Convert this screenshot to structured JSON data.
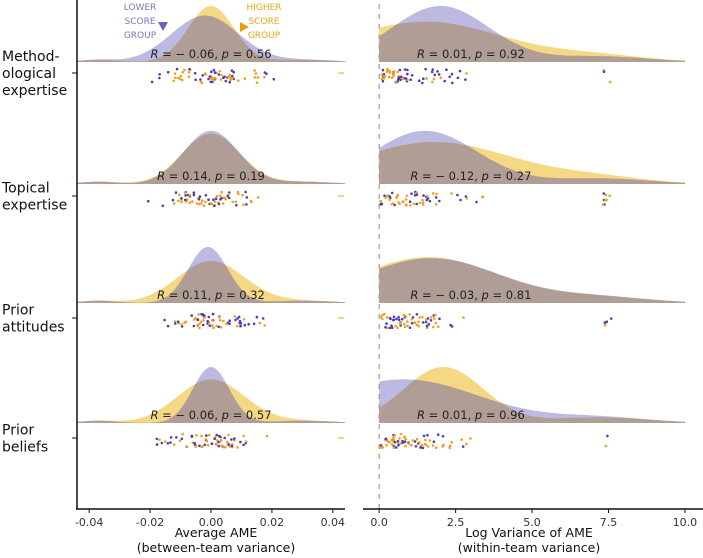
{
  "colors": {
    "lower": "#8f8ccf",
    "higher": "#f0c850",
    "overlap": "#b09d95",
    "lower_point": "#4a3fb0",
    "higher_point": "#f0a020",
    "legend_lower_text": "#7b78c4",
    "legend_higher_text": "#e6a817"
  },
  "legend": {
    "lower": [
      "LOWER",
      "SCORE",
      "GROUP"
    ],
    "higher": [
      "HIGHER",
      "SCORE",
      "GROUP"
    ]
  },
  "chart_data": [
    {
      "type": "area",
      "panel": "left",
      "title": "",
      "xlabel": "Average AME",
      "xlabel2": "(between-team variance)",
      "xlim": [
        -0.044,
        0.044
      ],
      "xticks": [
        -0.04,
        -0.02,
        0.0,
        0.02,
        0.04
      ],
      "xtick_labels": [
        "-0.04",
        "-0.02",
        "0.00",
        "0.02",
        "0.04"
      ],
      "rows": [
        {
          "label": [
            "Method-",
            "ological",
            "expertise"
          ],
          "annotation": {
            "R": "− 0.06",
            "p": "0.56"
          },
          "lower": {
            "peak_x": -0.002,
            "sd": 0.011,
            "height": 0.83
          },
          "higher": {
            "peak_x": 0.0,
            "sd": 0.0075,
            "height": 1.0
          }
        },
        {
          "label": [
            "Topical",
            "expertise"
          ],
          "annotation": {
            "R": "0.14",
            "p": "0.19"
          },
          "lower": {
            "peak_x": 0.0,
            "sd": 0.009,
            "height": 0.95
          },
          "higher": {
            "peak_x": 0.0,
            "sd": 0.0095,
            "height": 0.9
          }
        },
        {
          "label": [
            "Prior",
            "attitudes"
          ],
          "annotation": {
            "R": "0.11",
            "p": "0.32"
          },
          "lower": {
            "peak_x": -0.001,
            "sd": 0.0065,
            "height": 1.0
          },
          "higher": {
            "peak_x": 0.0,
            "sd": 0.011,
            "height": 0.75
          }
        },
        {
          "label": [
            "Prior",
            "beliefs"
          ],
          "annotation": {
            "R": "− 0.06",
            "p": "0.57"
          },
          "lower": {
            "peak_x": 0.0,
            "sd": 0.006,
            "height": 1.0
          },
          "higher": {
            "peak_x": 0.0,
            "sd": 0.011,
            "height": 0.78
          }
        }
      ]
    },
    {
      "type": "area",
      "panel": "right",
      "title": "",
      "xlabel": "Log Variance of AME",
      "xlabel2": "(within-team variance)",
      "xlim": [
        -0.3,
        10.1
      ],
      "xticks": [
        0.0,
        2.5,
        5.0,
        7.5,
        10.0
      ],
      "xtick_labels": [
        "0.0",
        "2.5",
        "5.0",
        "7.5",
        "10.0"
      ],
      "reference_line_x": 0.0,
      "rows": [
        {
          "annotation": {
            "R": "0.01",
            "p": "0.92"
          },
          "lower": {
            "peak_x": 2.0,
            "sd": 1.6,
            "height": 1.0
          },
          "higher": {
            "peak_x": 1.5,
            "sd": 2.6,
            "height": 0.72
          }
        },
        {
          "annotation": {
            "R": "− 0.12",
            "p": "0.27"
          },
          "lower": {
            "peak_x": 1.5,
            "sd": 1.7,
            "height": 0.95
          },
          "higher": {
            "peak_x": 1.8,
            "sd": 2.6,
            "height": 0.75
          }
        },
        {
          "annotation": {
            "R": "− 0.03",
            "p": "0.81"
          },
          "lower": {
            "peak_x": 1.7,
            "sd": 2.3,
            "height": 0.8
          },
          "higher": {
            "peak_x": 1.6,
            "sd": 2.3,
            "height": 0.82
          }
        },
        {
          "annotation": {
            "R": "0.01",
            "p": "0.96"
          },
          "lower": {
            "peak_x": 0.8,
            "sd": 2.5,
            "height": 0.78
          },
          "higher": {
            "peak_x": 2.1,
            "sd": 1.3,
            "height": 1.0
          }
        }
      ]
    }
  ]
}
